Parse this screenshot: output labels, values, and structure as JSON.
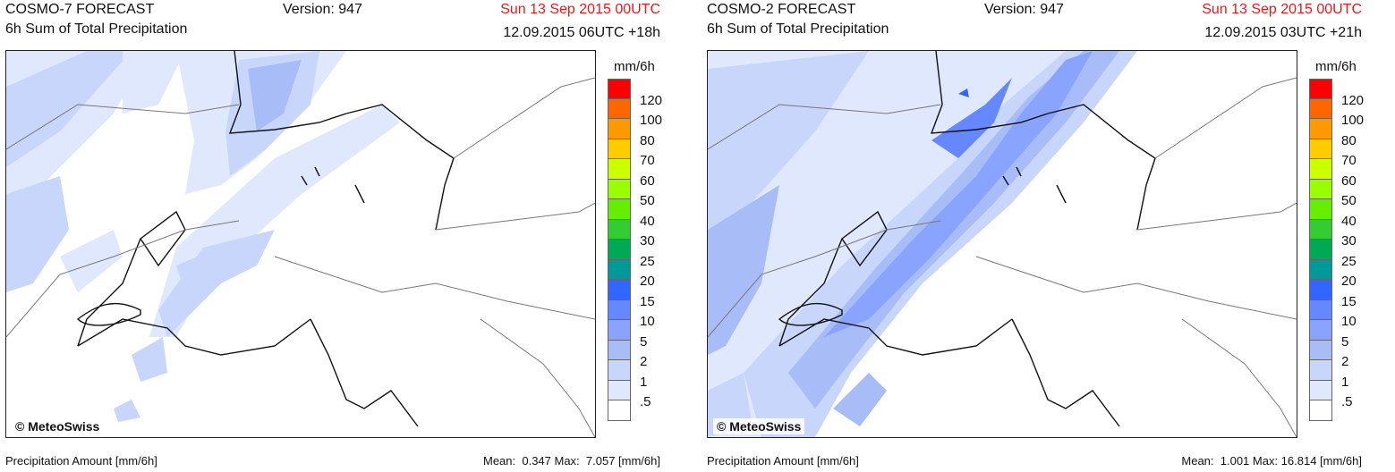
{
  "legend": {
    "unit": "mm/6h",
    "levels": [
      {
        "label": "120",
        "color": "#ff0000"
      },
      {
        "label": "100",
        "color": "#ff6600"
      },
      {
        "label": "80",
        "color": "#ff9900"
      },
      {
        "label": "70",
        "color": "#ffcc00"
      },
      {
        "label": "60",
        "color": "#ccff00"
      },
      {
        "label": "50",
        "color": "#99ff00"
      },
      {
        "label": "40",
        "color": "#66ee00"
      },
      {
        "label": "30",
        "color": "#33cc33"
      },
      {
        "label": "25",
        "color": "#00aa55"
      },
      {
        "label": "20",
        "color": "#009999"
      },
      {
        "label": "15",
        "color": "#3366ff"
      },
      {
        "label": "10",
        "color": "#6688ff"
      },
      {
        "label": "5",
        "color": "#88a4ff"
      },
      {
        "label": "2",
        "color": "#a8bcf8"
      },
      {
        "label": "1",
        "color": "#c8d6fb"
      },
      {
        "label": ".5",
        "color": "#e0e8fd"
      },
      {
        "label": "",
        "color": "#ffffff"
      }
    ]
  },
  "panels": [
    {
      "model": "COSMO-7 FORECAST",
      "product": "6h Sum of Total Precipitation",
      "version": "Version: 947",
      "valid_time": "Sun 13 Sep 2015 00UTC",
      "run_time": "12.09.2015 06UTC +18h",
      "copyright": "© MeteoSwiss",
      "footer_left": "Precipitation Amount [mm/6h]",
      "footer_right": "Mean:  0.347 Max:  7.057 [mm/6h]"
    },
    {
      "model": "COSMO-2 FORECAST",
      "product": "6h Sum of Total Precipitation",
      "version": "Version: 947",
      "valid_time": "Sun 13 Sep 2015 00UTC",
      "run_time": "12.09.2015 03UTC +21h",
      "copyright": "© MeteoSwiss",
      "footer_left": "Precipitation Amount [mm/6h]",
      "footer_right": "Mean:  1.001 Max: 16.814 [mm/6h]"
    }
  ]
}
